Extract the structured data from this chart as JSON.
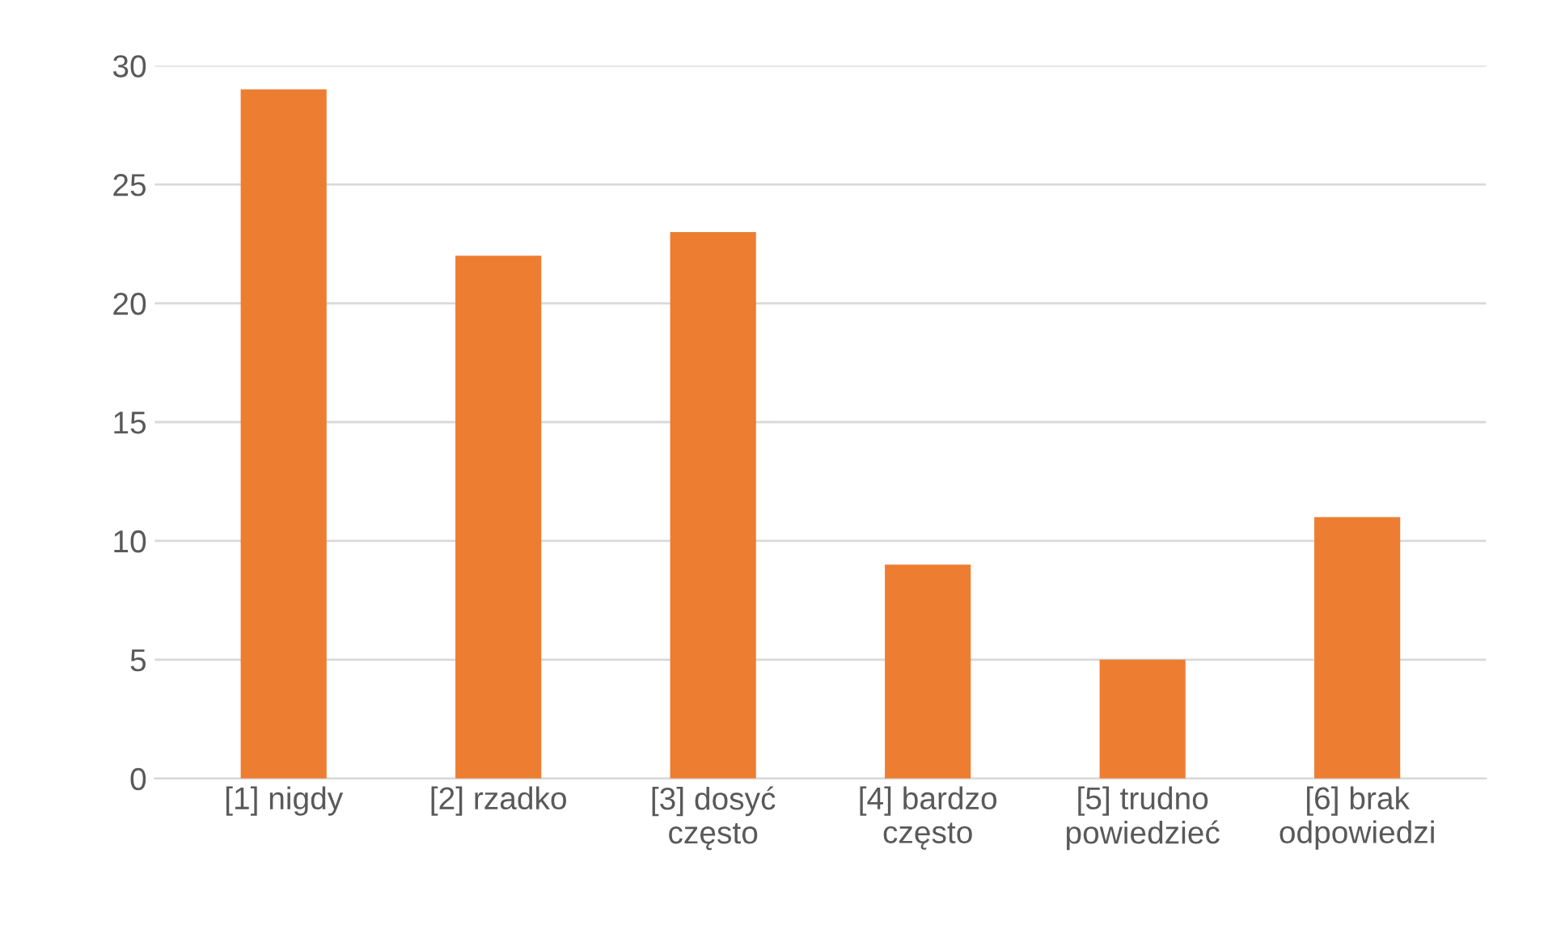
{
  "chart_data": {
    "type": "bar",
    "categories": [
      "[1] nigdy",
      "[2] rzadko",
      "[3] dosyć\nczęsto",
      "[4] bardzo\nczęsto",
      "[5] trudno\npowiedzieć",
      "[6] brak\nodpowiedzi"
    ],
    "values": [
      29,
      22,
      23,
      9,
      5,
      11
    ],
    "color": "#ed7d31",
    "ylim": [
      0,
      30
    ],
    "yticks": [
      0,
      5,
      10,
      15,
      20,
      25,
      30
    ],
    "grid": "y"
  }
}
